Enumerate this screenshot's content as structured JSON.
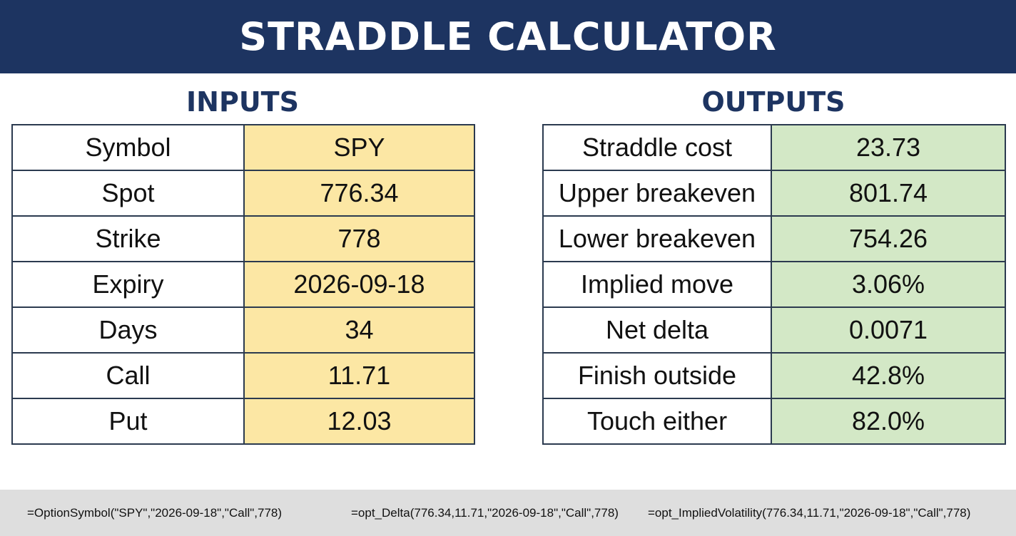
{
  "title": "STRADDLE CALCULATOR",
  "inputs": {
    "heading": "INPUTS",
    "rows": [
      {
        "label": "Symbol",
        "value": "SPY"
      },
      {
        "label": "Spot",
        "value": "776.34"
      },
      {
        "label": "Strike",
        "value": "778"
      },
      {
        "label": "Expiry",
        "value": "2026-09-18"
      },
      {
        "label": "Days",
        "value": "34"
      },
      {
        "label": "Call",
        "value": "11.71"
      },
      {
        "label": "Put",
        "value": "12.03"
      }
    ]
  },
  "outputs": {
    "heading": "OUTPUTS",
    "rows": [
      {
        "label": "Straddle cost",
        "value": "23.73"
      },
      {
        "label": "Upper breakeven",
        "value": "801.74"
      },
      {
        "label": "Lower breakeven",
        "value": "754.26"
      },
      {
        "label": "Implied move",
        "value": "3.06%"
      },
      {
        "label": "Net delta",
        "value": "0.0071"
      },
      {
        "label": "Finish outside",
        "value": "42.8%"
      },
      {
        "label": "Touch either",
        "value": "82.0%"
      }
    ]
  },
  "formulas": [
    "=OptionSymbol(\"SPY\",\"2026-09-18\",\"Call\",778)",
    "=opt_Delta(776.34,11.71,\"2026-09-18\",\"Call\",778)",
    "=opt_ImpliedVolatility(776.34,11.71,\"2026-09-18\",\"Call\",778)"
  ],
  "colors": {
    "header_bg": "#1d3461",
    "heading_text": "#1d3461",
    "input_value_bg": "#fce7a4",
    "output_value_bg": "#d3e8c6",
    "formula_bar_bg": "#dedede"
  }
}
